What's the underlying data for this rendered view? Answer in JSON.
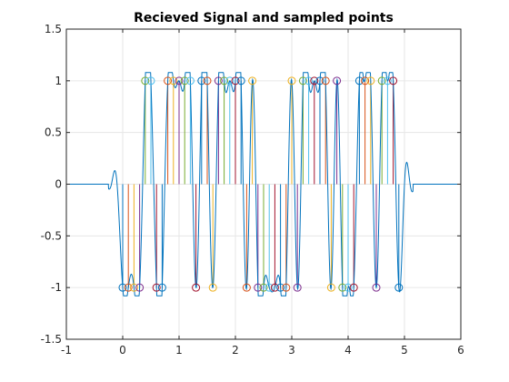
{
  "chart_data": {
    "type": "line",
    "title": "Recieved Signal and sampled points",
    "xlabel": "",
    "ylabel": "",
    "xlim": [
      -1,
      6
    ],
    "ylim": [
      -1.5,
      1.5
    ],
    "x_ticks": [
      -1,
      0,
      1,
      2,
      3,
      4,
      5,
      6
    ],
    "y_ticks": [
      -1.5,
      -1,
      -0.5,
      0,
      0.5,
      1,
      1.5
    ],
    "x_tick_labels": [
      "-1",
      "0",
      "1",
      "2",
      "3",
      "4",
      "5",
      "6"
    ],
    "y_tick_labels": [
      "-1.5",
      "-1",
      "-0.5",
      "0",
      "0.5",
      "1",
      "1.5"
    ],
    "grid": true,
    "signal_color": "#0072BD",
    "sample_colors": [
      "#0072BD",
      "#D95319",
      "#EDB120",
      "#7E2F8E",
      "#77AC30",
      "#4DBEEE",
      "#A2142F"
    ],
    "samples": [
      {
        "x": 0.0,
        "y": -1
      },
      {
        "x": 0.1,
        "y": -1
      },
      {
        "x": 0.2,
        "y": -1
      },
      {
        "x": 0.3,
        "y": -1
      },
      {
        "x": 0.4,
        "y": 1
      },
      {
        "x": 0.5,
        "y": 1
      },
      {
        "x": 0.6,
        "y": -1
      },
      {
        "x": 0.7,
        "y": -1
      },
      {
        "x": 0.8,
        "y": 1
      },
      {
        "x": 0.9,
        "y": 1
      },
      {
        "x": 1.0,
        "y": 1
      },
      {
        "x": 1.1,
        "y": 1
      },
      {
        "x": 1.2,
        "y": 1
      },
      {
        "x": 1.3,
        "y": -1
      },
      {
        "x": 1.4,
        "y": 1
      },
      {
        "x": 1.5,
        "y": 1
      },
      {
        "x": 1.6,
        "y": -1
      },
      {
        "x": 1.7,
        "y": 1
      },
      {
        "x": 1.8,
        "y": 1
      },
      {
        "x": 1.9,
        "y": 1
      },
      {
        "x": 2.0,
        "y": 1
      },
      {
        "x": 2.1,
        "y": 1
      },
      {
        "x": 2.2,
        "y": -1
      },
      {
        "x": 2.3,
        "y": 1
      },
      {
        "x": 2.4,
        "y": -1
      },
      {
        "x": 2.5,
        "y": -1
      },
      {
        "x": 2.6,
        "y": -1
      },
      {
        "x": 2.7,
        "y": -1
      },
      {
        "x": 2.8,
        "y": -1
      },
      {
        "x": 2.9,
        "y": -1
      },
      {
        "x": 3.0,
        "y": 1
      },
      {
        "x": 3.1,
        "y": -1
      },
      {
        "x": 3.2,
        "y": 1
      },
      {
        "x": 3.3,
        "y": 1
      },
      {
        "x": 3.4,
        "y": 1
      },
      {
        "x": 3.5,
        "y": 1
      },
      {
        "x": 3.6,
        "y": 1
      },
      {
        "x": 3.7,
        "y": -1
      },
      {
        "x": 3.8,
        "y": 1
      },
      {
        "x": 3.9,
        "y": -1
      },
      {
        "x": 4.0,
        "y": -1
      },
      {
        "x": 4.1,
        "y": -1
      },
      {
        "x": 4.2,
        "y": 1
      },
      {
        "x": 4.3,
        "y": 1
      },
      {
        "x": 4.4,
        "y": 1
      },
      {
        "x": 4.5,
        "y": -1
      },
      {
        "x": 4.6,
        "y": 1
      },
      {
        "x": 4.7,
        "y": 1
      },
      {
        "x": 4.8,
        "y": 1
      },
      {
        "x": 4.9,
        "y": -1
      }
    ]
  }
}
